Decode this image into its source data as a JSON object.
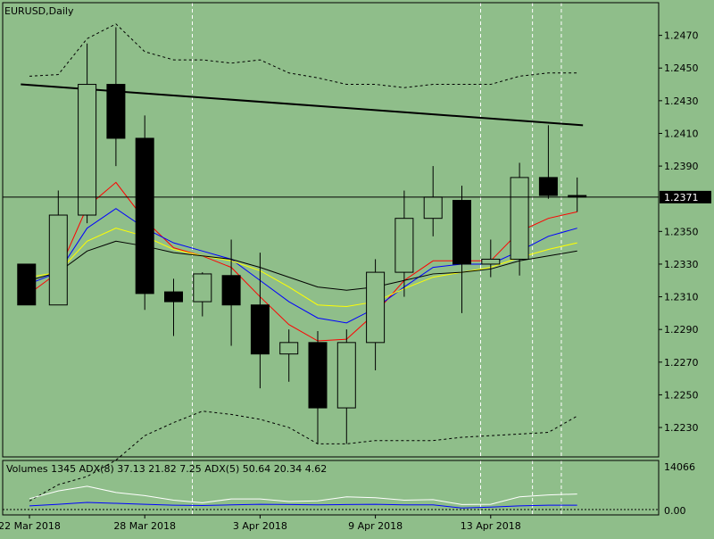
{
  "chart_data": {
    "type": "candlestick",
    "title": "EURUSD,Daily",
    "current_price": "1.2371",
    "y_range": [
      1.2212,
      1.249
    ],
    "y_ticks": [
      "1.2470",
      "1.2450",
      "1.2430",
      "1.2410",
      "1.2390",
      "1.2371",
      "1.2350",
      "1.2330",
      "1.2310",
      "1.2290",
      "1.2270",
      "1.2250",
      "1.2230"
    ],
    "x_labels": [
      {
        "label": "22 Mar 2018",
        "bar": 0
      },
      {
        "label": "28 Mar 2018",
        "bar": 4
      },
      {
        "label": "3 Apr 2018",
        "bar": 8
      },
      {
        "label": "9 Apr 2018",
        "bar": 12
      },
      {
        "label": "13 Apr 2018",
        "bar": 16
      }
    ],
    "vertical_dashed_at_bars": [
      5.65,
      15.65,
      17.45,
      18.45
    ],
    "candles": [
      {
        "o": 1.233,
        "h": 1.233,
        "l": 1.2305,
        "c": 1.2305,
        "x": -0.1
      },
      {
        "o": 1.2305,
        "h": 1.2375,
        "l": 1.2305,
        "c": 1.236
      },
      {
        "o": 1.236,
        "h": 1.2465,
        "l": 1.2355,
        "c": 1.244
      },
      {
        "o": 1.244,
        "h": 1.2475,
        "l": 1.239,
        "c": 1.2407
      },
      {
        "o": 1.2407,
        "h": 1.2421,
        "l": 1.2302,
        "c": 1.2312
      },
      {
        "o": 1.2313,
        "h": 1.2321,
        "l": 1.2286,
        "c": 1.2307
      },
      {
        "o": 1.2307,
        "h": 1.2325,
        "l": 1.2298,
        "c": 1.2324
      },
      {
        "o": 1.2323,
        "h": 1.2345,
        "l": 1.228,
        "c": 1.2305
      },
      {
        "o": 1.2305,
        "h": 1.2337,
        "l": 1.2254,
        "c": 1.2275
      },
      {
        "o": 1.2275,
        "h": 1.229,
        "l": 1.2258,
        "c": 1.2282
      },
      {
        "o": 1.2282,
        "h": 1.2289,
        "l": 1.222,
        "c": 1.2242
      },
      {
        "o": 1.2242,
        "h": 1.229,
        "l": 1.222,
        "c": 1.2282
      },
      {
        "o": 1.2282,
        "h": 1.2333,
        "l": 1.2265,
        "c": 1.2325
      },
      {
        "o": 1.2325,
        "h": 1.2375,
        "l": 1.231,
        "c": 1.2358
      },
      {
        "o": 1.2358,
        "h": 1.239,
        "l": 1.2347,
        "c": 1.2371
      },
      {
        "o": 1.2369,
        "h": 1.2378,
        "l": 1.23,
        "c": 1.233
      },
      {
        "o": 1.233,
        "h": 1.2345,
        "l": 1.2322,
        "c": 1.2333
      },
      {
        "o": 1.2333,
        "h": 1.2392,
        "l": 1.2323,
        "c": 1.2383
      },
      {
        "o": 1.2383,
        "h": 1.2415,
        "l": 1.237,
        "c": 1.2372
      },
      {
        "o": 1.2372,
        "h": 1.2383,
        "l": 1.2362,
        "c": 1.2371
      }
    ],
    "lines": [
      {
        "name": "ma_red",
        "color": "#ff0000",
        "values": [
          1.2312,
          1.2325,
          1.2365,
          1.238,
          1.2357,
          1.234,
          1.2335,
          1.2328,
          1.231,
          1.2293,
          1.2283,
          1.2284,
          1.23,
          1.232,
          1.2332,
          1.2332,
          1.2332,
          1.235,
          1.2358,
          1.2362
        ]
      },
      {
        "name": "ma_blue",
        "color": "#0000ff",
        "values": [
          1.2318,
          1.2325,
          1.2352,
          1.2364,
          1.2352,
          1.2343,
          1.2338,
          1.2333,
          1.232,
          1.2307,
          1.2297,
          1.2294,
          1.2303,
          1.2316,
          1.2328,
          1.233,
          1.233,
          1.2338,
          1.2347,
          1.2352
        ]
      },
      {
        "name": "ma_yellow",
        "color": "#ffff00",
        "values": [
          1.2322,
          1.2325,
          1.2344,
          1.2352,
          1.2347,
          1.2339,
          1.2335,
          1.2332,
          1.2326,
          1.2316,
          1.2305,
          1.2304,
          1.2307,
          1.2315,
          1.2322,
          1.2325,
          1.2328,
          1.2334,
          1.2339,
          1.2343
        ]
      },
      {
        "name": "ma_black",
        "color": "#000000",
        "values": [
          1.232,
          1.2325,
          1.2338,
          1.2344,
          1.2341,
          1.2337,
          1.2335,
          1.2333,
          1.2328,
          1.2322,
          1.2316,
          1.2314,
          1.2316,
          1.232,
          1.2324,
          1.2325,
          1.2327,
          1.2332,
          1.2335,
          1.2338
        ]
      }
    ],
    "bands": [
      {
        "name": "upper_band",
        "values": [
          1.2445,
          1.2446,
          1.2468,
          1.2477,
          1.246,
          1.2455,
          1.2455,
          1.2453,
          1.2455,
          1.2447,
          1.2444,
          1.244,
          1.244,
          1.2438,
          1.244,
          1.244,
          1.244,
          1.2445,
          1.2447,
          1.2447
        ]
      },
      {
        "name": "lower_band",
        "values": [
          1.2185,
          1.2195,
          1.22,
          1.221,
          1.2225,
          1.2233,
          1.224,
          1.2238,
          1.2235,
          1.223,
          1.222,
          1.222,
          1.2222,
          1.2222,
          1.2222,
          1.2224,
          1.2225,
          1.2226,
          1.2227,
          1.2237
        ]
      }
    ],
    "trendline": {
      "from": {
        "bar": -0.3,
        "price": 1.244
      },
      "to": {
        "bar": 19.2,
        "price": 1.2415
      }
    },
    "indicator": {
      "label": "Volumes 1345 ADX(8) 37.13 21.82 7.25 ADX(5) 50.64 20.34 4.62",
      "tick_top": "14066",
      "tick_bottom": "0.00",
      "range": [
        0,
        14066
      ],
      "white_line": [
        3500,
        6000,
        7500,
        5500,
        4500,
        3000,
        2200,
        3400,
        3400,
        2600,
        2800,
        4100,
        3800,
        3000,
        3200,
        1600,
        1700,
        4100,
        4700,
        5000
      ],
      "blue_line": [
        1200,
        1700,
        2300,
        2000,
        1700,
        1400,
        1300,
        1500,
        1700,
        1600,
        1500,
        1600,
        1700,
        1500,
        1500,
        500,
        800,
        1200,
        1400,
        1400
      ]
    }
  }
}
